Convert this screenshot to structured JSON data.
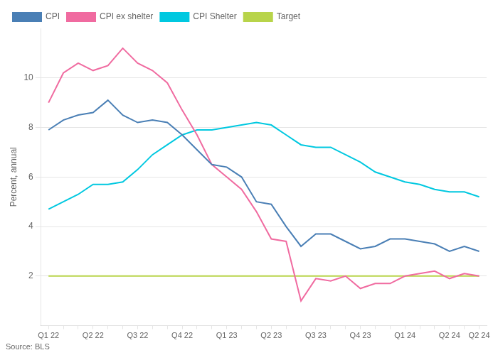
{
  "chart_data": {
    "type": "line",
    "ylabel": "Percent, annual",
    "annotations": [
      "Source: BLS"
    ],
    "categories": [
      "Q1 22",
      null,
      null,
      "Q2 22",
      null,
      null,
      "Q3 22",
      null,
      null,
      "Q4 22",
      null,
      null,
      "Q1 23",
      null,
      null,
      "Q2 23",
      null,
      null,
      "Q3 23",
      null,
      null,
      "Q4 23",
      null,
      null,
      "Q1 24",
      null,
      null,
      "Q2 24",
      null,
      "Q2 24"
    ],
    "series": [
      {
        "name": "CPI",
        "color": "#4a7fb5",
        "values": [
          7.9,
          8.3,
          8.5,
          8.6,
          9.1,
          8.5,
          8.2,
          8.3,
          8.2,
          7.7,
          7.1,
          6.5,
          6.4,
          6.0,
          5.0,
          4.9,
          4.0,
          3.2,
          3.7,
          3.7,
          3.4,
          3.1,
          3.2,
          3.5,
          3.5,
          3.4,
          3.3,
          3.0,
          3.2,
          3.0
        ]
      },
      {
        "name": "CPI ex shelter",
        "color": "#f06ba0",
        "values": [
          9.0,
          10.2,
          10.6,
          10.3,
          10.5,
          11.2,
          10.6,
          10.3,
          9.8,
          8.7,
          7.7,
          6.5,
          6.0,
          5.5,
          4.6,
          3.5,
          3.4,
          1.0,
          1.9,
          1.8,
          2.0,
          1.5,
          1.7,
          1.7,
          2.0,
          2.1,
          2.2,
          1.9,
          2.1,
          2.0
        ]
      },
      {
        "name": "CPI Shelter",
        "color": "#00c8e0",
        "values": [
          4.7,
          5.0,
          5.3,
          5.7,
          5.7,
          5.8,
          6.3,
          6.9,
          7.3,
          7.7,
          7.9,
          7.9,
          8.0,
          8.1,
          8.2,
          8.1,
          7.7,
          7.3,
          7.2,
          7.2,
          6.9,
          6.6,
          6.2,
          6.0,
          5.8,
          5.7,
          5.5,
          5.4,
          5.4,
          5.2
        ]
      },
      {
        "name": "Target",
        "color": "#b8d44a",
        "values": [
          2.0,
          2.0,
          2.0,
          2.0,
          2.0,
          2.0,
          2.0,
          2.0,
          2.0,
          2.0,
          2.0,
          2.0,
          2.0,
          2.0,
          2.0,
          2.0,
          2.0,
          2.0,
          2.0,
          2.0,
          2.0,
          2.0,
          2.0,
          2.0,
          2.0,
          2.0,
          2.0,
          2.0,
          2.0,
          2.0
        ]
      }
    ],
    "ylim": [
      0,
      12
    ],
    "yticks": [
      2,
      4,
      6,
      8,
      10
    ],
    "grid": "y",
    "legend": "upper left"
  }
}
